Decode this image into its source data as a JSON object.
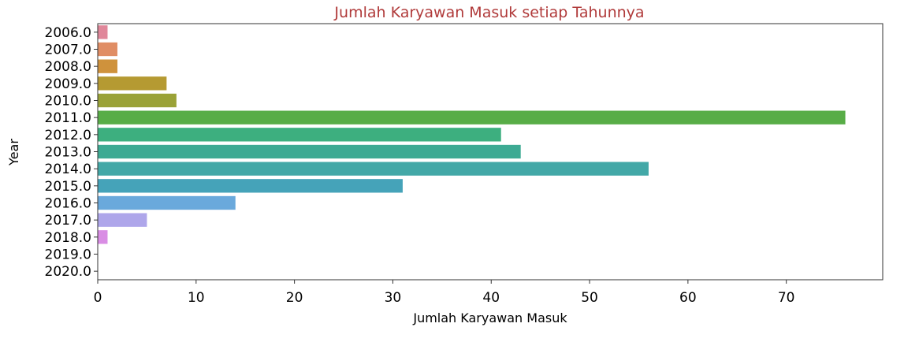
{
  "chart_data": {
    "type": "bar",
    "orientation": "horizontal",
    "title": "Jumlah Karyawan Masuk setiap Tahunnya",
    "title_color": "#b03a3a",
    "xlabel": "Jumlah Karyawan Masuk",
    "ylabel": "Year",
    "xlim": [
      0,
      79.8
    ],
    "xticks": [
      0,
      10,
      20,
      30,
      40,
      50,
      60,
      70
    ],
    "grid": false,
    "categories": [
      "2006.0",
      "2007.0",
      "2008.0",
      "2009.0",
      "2010.0",
      "2011.0",
      "2012.0",
      "2013.0",
      "2014.0",
      "2015.0",
      "2016.0",
      "2017.0",
      "2018.0",
      "2019.0",
      "2020.0"
    ],
    "values": [
      1,
      2,
      2,
      7,
      8,
      76,
      41,
      43,
      56,
      31,
      14,
      5,
      1,
      0,
      0
    ],
    "colors": [
      "#e0879a",
      "#e08d64",
      "#cf923c",
      "#b59a32",
      "#9aa237",
      "#58ad47",
      "#3daf7f",
      "#3daa93",
      "#43a8a7",
      "#45a3b9",
      "#6aa9dc",
      "#aea6ea",
      "#d98de4",
      "#ea86c7",
      "#ea8aa5"
    ]
  }
}
